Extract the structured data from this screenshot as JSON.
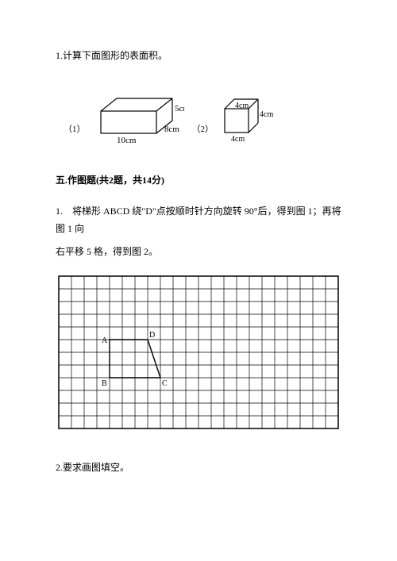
{
  "problem1": {
    "title": "1.计算下面图形的表面积。",
    "fig1": {
      "label": "（1）",
      "length": "10cm",
      "width": "8cm",
      "height": "5cm",
      "dims": {
        "l": 10,
        "w": 8,
        "h": 5
      }
    },
    "fig2": {
      "label": "（2）",
      "edge_top": "4cm",
      "edge_bottom": "4cm",
      "edge_right": "4cm",
      "dim": 4
    }
  },
  "section5": {
    "heading": "五.作图题(共2题，共14分)",
    "q1_line1": "1.　将梯形 ABCD 绕\"D\"点按顺时针方向旋转 90°后，得到图 1；再将图 1 向",
    "q1_line2": "右平移 5 格，得到图 2。",
    "q2": "2.要求画图填空。"
  },
  "grid": {
    "cols": 22,
    "rows": 12,
    "cell": 16,
    "trapezoid": {
      "A": {
        "col": 4,
        "row": 5
      },
      "B": {
        "col": 4,
        "row": 8
      },
      "C": {
        "col": 8,
        "row": 8
      },
      "D": {
        "col": 7,
        "row": 5
      },
      "labels": {
        "A": "A",
        "B": "B",
        "C": "C",
        "D": "D"
      }
    }
  },
  "style": {
    "stroke": "#000000",
    "grid_stroke": "#000000",
    "grid_width": 0.7,
    "shape_width": 1.4,
    "font": "SimSun",
    "font_size_main": 12,
    "font_size_small": 10
  }
}
